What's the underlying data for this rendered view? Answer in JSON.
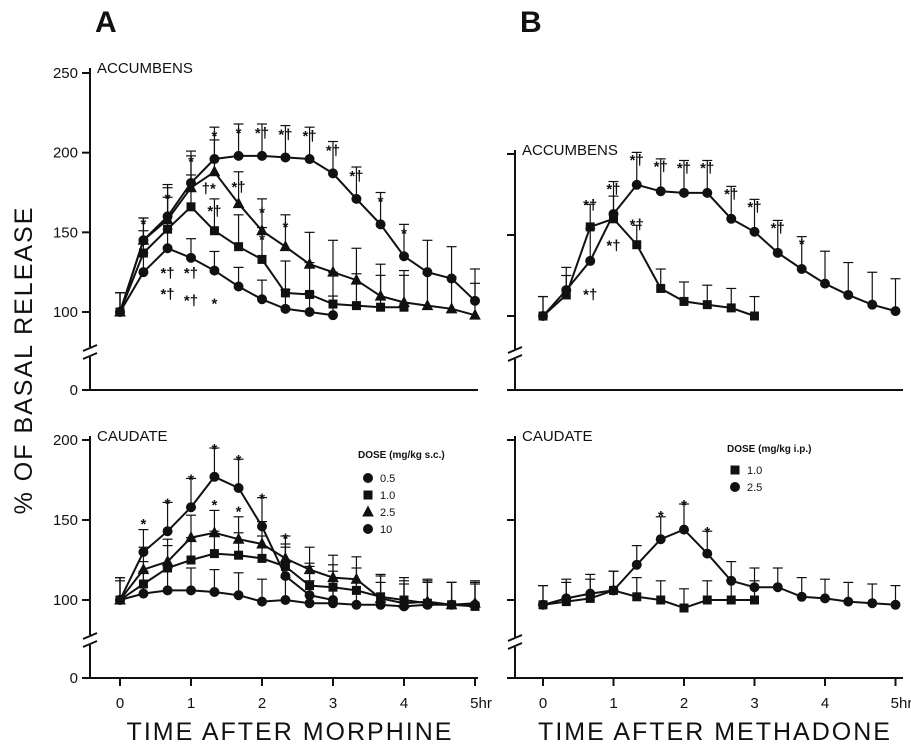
{
  "figure": {
    "ylabel": "% OF BASAL RELEASE",
    "colors": {
      "ink": "#111111",
      "background": "#ffffff"
    }
  },
  "chart_data": [
    {
      "id": "A",
      "type": "line",
      "letter": "A",
      "xlabel": "TIME AFTER MORPHINE",
      "x_ticks": [
        "0",
        "1",
        "2",
        "3",
        "4",
        "5hr"
      ],
      "xlim": [
        0,
        5
      ],
      "grid": false,
      "legend": {
        "title": "DOSE (mg/kg s.c.)",
        "placement": "right",
        "items": [
          {
            "label": "0.5",
            "marker": "circle"
          },
          {
            "label": "1.0",
            "marker": "square"
          },
          {
            "label": "2.5",
            "marker": "triangle"
          },
          {
            "label": "10",
            "marker": "circle"
          }
        ]
      },
      "panels": [
        {
          "region": "ACCUMBENS",
          "y_ticks": [
            "250",
            "200",
            "150",
            "100",
            "0"
          ],
          "ylim": [
            0,
            250
          ],
          "y_broken": true,
          "series": [
            {
              "marker": "circle",
              "x": [
                0,
                0.33,
                0.67,
                1,
                1.33,
                1.67,
                2,
                2.33,
                2.67,
                3
              ],
              "y": [
                100,
                125,
                140,
                134,
                126,
                116,
                108,
                102,
                100,
                98
              ],
              "err": [
                12,
                12,
                12,
                12,
                12,
                12,
                12,
                12,
                12,
                12
              ]
            },
            {
              "marker": "square",
              "x": [
                0,
                0.33,
                0.67,
                1,
                1.33,
                1.67,
                2,
                2.33,
                2.67,
                3,
                3.33,
                3.67,
                4
              ],
              "y": [
                100,
                137,
                152,
                166,
                151,
                141,
                133,
                112,
                111,
                105,
                104,
                103,
                103
              ],
              "err": [
                12,
                14,
                20,
                20,
                20,
                20,
                20,
                20,
                20,
                20,
                20,
                20,
                20
              ]
            },
            {
              "marker": "triangle",
              "x": [
                0,
                0.33,
                0.67,
                1,
                1.33,
                1.67,
                2,
                2.33,
                2.67,
                3,
                3.33,
                3.67,
                4,
                4.33,
                4.67,
                5
              ],
              "y": [
                100,
                145,
                158,
                178,
                188,
                168,
                151,
                141,
                130,
                125,
                120,
                110,
                106,
                104,
                102,
                98
              ],
              "err": [
                12,
                14,
                20,
                20,
                20,
                20,
                20,
                20,
                20,
                20,
                20,
                20,
                20,
                20,
                20,
                20
              ]
            },
            {
              "marker": "circle",
              "x": [
                0,
                0.33,
                0.67,
                1,
                1.33,
                1.67,
                2,
                2.33,
                2.67,
                3,
                3.33,
                3.67,
                4,
                4.33,
                4.67,
                5
              ],
              "y": [
                100,
                145,
                160,
                181,
                196,
                198,
                198,
                197,
                196,
                187,
                171,
                155,
                135,
                125,
                121,
                107
              ],
              "err": [
                12,
                14,
                20,
                20,
                20,
                20,
                20,
                20,
                20,
                20,
                20,
                20,
                20,
                20,
                20,
                20
              ]
            }
          ],
          "annotations": [
            {
              "text": "*",
              "x": 0.33,
              "y": 156
            },
            {
              "text": "*",
              "x": 0.67,
              "y": 172
            },
            {
              "text": "*",
              "x": 1,
              "y": 195
            },
            {
              "text": "*",
              "x": 1.33,
              "y": 211
            },
            {
              "text": "*",
              "x": 1.67,
              "y": 213
            },
            {
              "text": "*†",
              "x": 2,
              "y": 213
            },
            {
              "text": "*†",
              "x": 2.33,
              "y": 212
            },
            {
              "text": "*†",
              "x": 2.67,
              "y": 211
            },
            {
              "text": "*†",
              "x": 3,
              "y": 202
            },
            {
              "text": "*†",
              "x": 3.33,
              "y": 186
            },
            {
              "text": "*",
              "x": 3.67,
              "y": 170
            },
            {
              "text": "*",
              "x": 4,
              "y": 150
            },
            {
              "text": "†*",
              "x": 1.25,
              "y": 178
            },
            {
              "text": "*†",
              "x": 1.67,
              "y": 179
            },
            {
              "text": "*†",
              "x": 1.33,
              "y": 164
            },
            {
              "text": "*",
              "x": 2,
              "y": 163
            },
            {
              "text": "*",
              "x": 2.33,
              "y": 154
            },
            {
              "text": "*",
              "x": 2,
              "y": 146
            },
            {
              "text": "*†",
              "x": 0.67,
              "y": 125
            },
            {
              "text": "*†",
              "x": 1,
              "y": 125
            },
            {
              "text": "*†",
              "x": 0.67,
              "y": 112
            },
            {
              "text": "*†",
              "x": 1,
              "y": 108
            },
            {
              "text": "*",
              "x": 1.33,
              "y": 106
            }
          ]
        },
        {
          "region": "CAUDATE",
          "y_ticks": [
            "200",
            "150",
            "100",
            "0"
          ],
          "ylim": [
            0,
            200
          ],
          "y_broken": true,
          "series": [
            {
              "marker": "circle",
              "x": [
                0,
                0.33,
                0.67,
                1,
                1.33,
                1.67,
                2,
                2.33,
                2.67,
                3,
                3.33,
                3.67,
                4,
                4.33,
                4.67,
                5
              ],
              "y": [
                100,
                104,
                106,
                106,
                105,
                103,
                99,
                100,
                98,
                98,
                97,
                97,
                96,
                97,
                97,
                97
              ],
              "err": [
                14,
                14,
                14,
                14,
                14,
                14,
                14,
                14,
                14,
                14,
                14,
                14,
                14,
                14,
                14,
                14
              ]
            },
            {
              "marker": "square",
              "x": [
                0,
                0.33,
                0.67,
                1,
                1.33,
                1.67,
                2,
                2.33,
                2.67,
                3,
                3.33,
                3.67,
                4,
                4.33,
                4.67,
                5
              ],
              "y": [
                100,
                110,
                120,
                125,
                129,
                128,
                126,
                121,
                109,
                108,
                106,
                102,
                100,
                98,
                97,
                96
              ],
              "err": [
                14,
                14,
                14,
                14,
                14,
                14,
                14,
                14,
                14,
                14,
                14,
                14,
                14,
                14,
                14,
                14
              ]
            },
            {
              "marker": "triangle",
              "x": [
                0,
                0.33,
                0.67,
                1,
                1.33,
                1.67,
                2,
                2.33,
                2.67,
                3,
                3.33,
                3.67,
                4,
                4.33,
                4.67,
                5
              ],
              "y": [
                100,
                119,
                124,
                139,
                142,
                138,
                135,
                126,
                119,
                114,
                113,
                101,
                98,
                99,
                97,
                98
              ],
              "err": [
                14,
                14,
                14,
                14,
                14,
                14,
                14,
                14,
                14,
                14,
                14,
                14,
                14,
                14,
                14,
                14
              ]
            },
            {
              "marker": "circle",
              "x": [
                0,
                0.33,
                0.67,
                1,
                1.33,
                1.67,
                2,
                2.33,
                2.67,
                3
              ],
              "y": [
                100,
                130,
                143,
                158,
                177,
                170,
                146,
                115,
                103,
                100
              ],
              "err": [
                12,
                14,
                18,
                18,
                18,
                18,
                18,
                18,
                18,
                18
              ]
            }
          ],
          "annotations": [
            {
              "text": "*",
              "x": 0.33,
              "y": 148
            },
            {
              "text": "*",
              "x": 0.67,
              "y": 161
            },
            {
              "text": "*",
              "x": 1,
              "y": 176
            },
            {
              "text": "*",
              "x": 1.33,
              "y": 195
            },
            {
              "text": "*",
              "x": 1.67,
              "y": 188
            },
            {
              "text": "*",
              "x": 2,
              "y": 164
            },
            {
              "text": "*",
              "x": 1.33,
              "y": 160
            },
            {
              "text": "*",
              "x": 1.67,
              "y": 156
            },
            {
              "text": "*",
              "x": 2.33,
              "y": 139
            }
          ]
        }
      ]
    },
    {
      "id": "B",
      "type": "line",
      "letter": "B",
      "xlabel": "TIME AFTER METHADONE",
      "x_ticks": [
        "0",
        "1",
        "2",
        "3",
        "4",
        "5hr"
      ],
      "xlim": [
        0,
        5
      ],
      "grid": false,
      "legend": {
        "title": "DOSE (mg/kg i.p.)",
        "placement": "right",
        "items": [
          {
            "label": "1.0",
            "marker": "square"
          },
          {
            "label": "2.5",
            "marker": "circle"
          }
        ]
      },
      "panels": [
        {
          "region": "ACCUMBENS",
          "y_ticks": [],
          "ylim": [
            0,
            250
          ],
          "y_broken": true,
          "series": [
            {
              "marker": "square",
              "x": [
                0,
                0.33,
                0.67,
                1,
                1.33,
                1.67,
                2,
                2.33,
                2.67,
                3
              ],
              "y": [
                100,
                113,
                155,
                160,
                144,
                117,
                109,
                107,
                105,
                100
              ],
              "err": [
                12,
                12,
                14,
                14,
                12,
                12,
                12,
                12,
                12,
                12
              ]
            },
            {
              "marker": "circle",
              "x": [
                0,
                0.33,
                0.67,
                1,
                1.33,
                1.67,
                2,
                2.33,
                2.67,
                3,
                3.33,
                3.67,
                4,
                4.33,
                4.67,
                5
              ],
              "y": [
                100,
                116,
                134,
                163,
                181,
                177,
                176,
                176,
                160,
                152,
                139,
                129,
                120,
                113,
                107,
                103
              ],
              "err": [
                12,
                14,
                20,
                20,
                20,
                20,
                20,
                20,
                20,
                20,
                20,
                20,
                20,
                20,
                20,
                20
              ]
            }
          ],
          "annotations": [
            {
              "text": "*†",
              "x": 0.67,
              "y": 169
            },
            {
              "text": "*†",
              "x": 1,
              "y": 179
            },
            {
              "text": "*†",
              "x": 1.33,
              "y": 197
            },
            {
              "text": "*†",
              "x": 1.67,
              "y": 193
            },
            {
              "text": "*†",
              "x": 2,
              "y": 192
            },
            {
              "text": "*†",
              "x": 2.33,
              "y": 192
            },
            {
              "text": "*†",
              "x": 2.67,
              "y": 176
            },
            {
              "text": "*†",
              "x": 3,
              "y": 168
            },
            {
              "text": "*†",
              "x": 3.33,
              "y": 155
            },
            {
              "text": "*",
              "x": 3.67,
              "y": 145
            },
            {
              "text": "*†",
              "x": 1.33,
              "y": 157
            },
            {
              "text": "*†",
              "x": 1,
              "y": 144
            },
            {
              "text": "*†",
              "x": 0.67,
              "y": 114
            }
          ]
        },
        {
          "region": "CAUDATE",
          "y_ticks": [],
          "ylim": [
            0,
            200
          ],
          "y_broken": true,
          "series": [
            {
              "marker": "square",
              "x": [
                0,
                0.33,
                0.67,
                1,
                1.33,
                1.67,
                2,
                2.33,
                2.67,
                3
              ],
              "y": [
                97,
                99,
                101,
                106,
                102,
                100,
                95,
                100,
                100,
                100
              ],
              "err": [
                12,
                12,
                12,
                12,
                12,
                12,
                12,
                12,
                12,
                12
              ]
            },
            {
              "marker": "circle",
              "x": [
                0,
                0.33,
                0.67,
                1,
                1.33,
                1.67,
                2,
                2.33,
                2.67,
                3,
                3.33,
                3.67,
                4,
                4.33,
                4.67,
                5
              ],
              "y": [
                97,
                101,
                104,
                106,
                122,
                138,
                144,
                129,
                112,
                108,
                108,
                102,
                101,
                99,
                98,
                97
              ],
              "err": [
                12,
                12,
                12,
                12,
                12,
                14,
                16,
                14,
                12,
                12,
                12,
                12,
                12,
                12,
                12,
                12
              ]
            }
          ],
          "annotations": [
            {
              "text": "*",
              "x": 1.67,
              "y": 153
            },
            {
              "text": "*",
              "x": 2,
              "y": 160
            },
            {
              "text": "*",
              "x": 2.33,
              "y": 143
            }
          ]
        }
      ]
    }
  ]
}
